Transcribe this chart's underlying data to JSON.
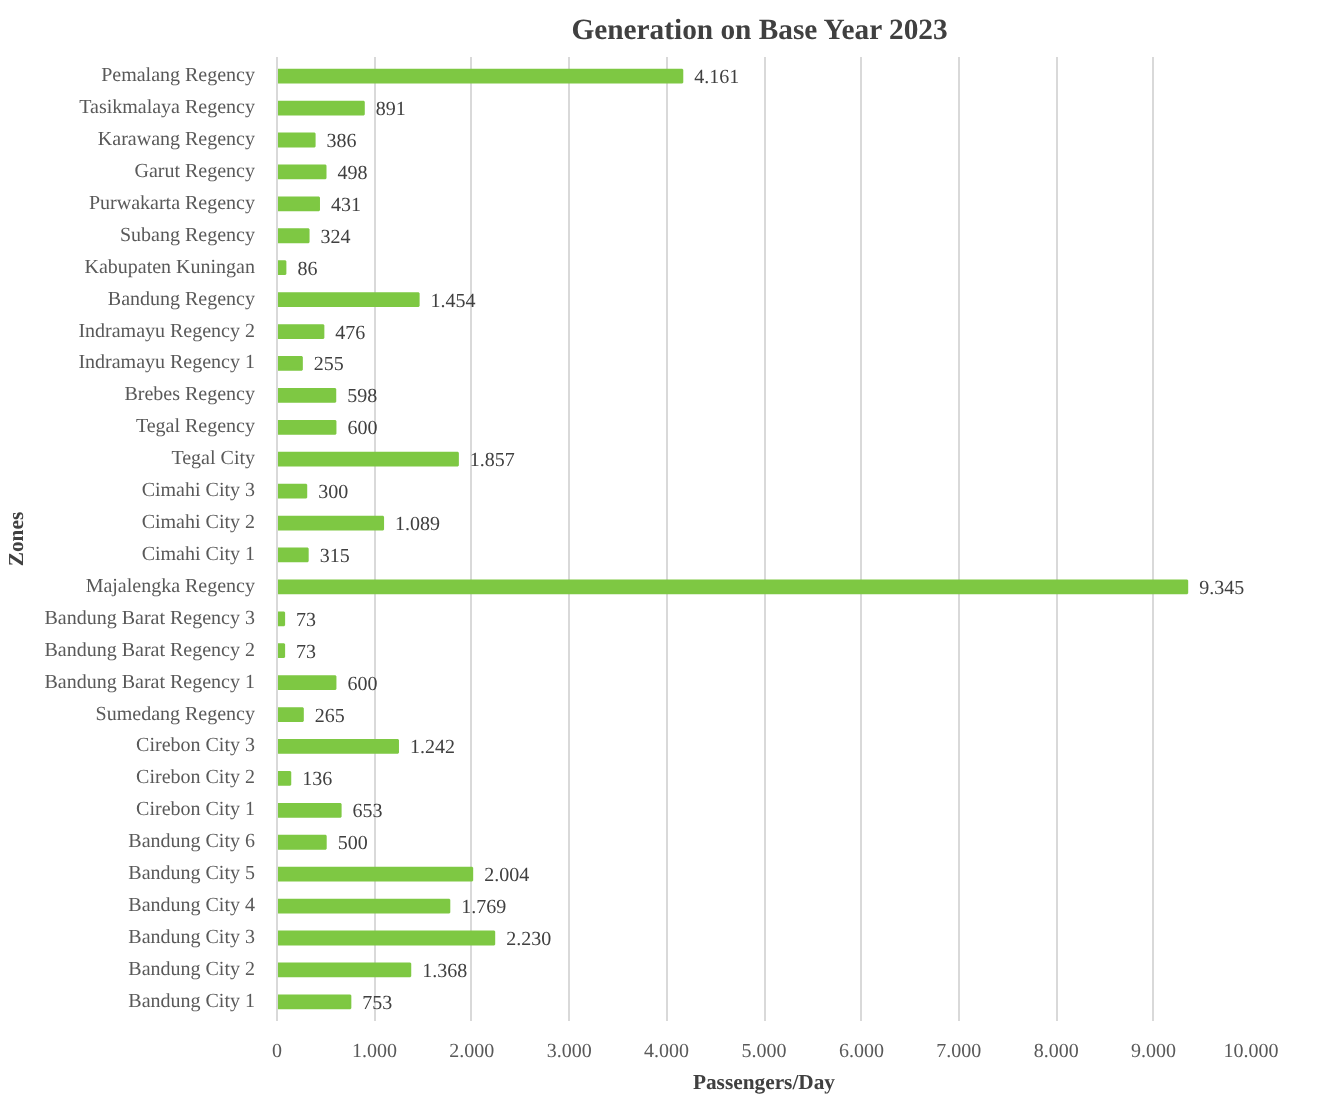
{
  "chart_data": {
    "type": "bar",
    "orientation": "horizontal",
    "title": "Generation  on Base Year 2023",
    "xlabel": "Passengers/Day",
    "ylabel": "Zones",
    "categories": [
      "Pemalang Regency",
      "Tasikmalaya Regency",
      "Karawang Regency",
      "Garut Regency",
      "Purwakarta Regency",
      "Subang Regency",
      "Kabupaten Kuningan",
      "Bandung Regency",
      "Indramayu Regency 2",
      "Indramayu Regency 1",
      "Brebes Regency",
      "Tegal Regency",
      "Tegal City",
      "Cimahi City 3",
      "Cimahi City 2",
      "Cimahi City 1",
      "Majalengka Regency",
      "Bandung Barat Regency 3",
      "Bandung Barat Regency 2",
      "Bandung Barat Regency 1",
      "Sumedang Regency",
      "Cirebon City 3",
      "Cirebon City 2",
      "Cirebon City 1",
      "Bandung City 6",
      "Bandung City 5",
      "Bandung City 4",
      "Bandung City 3",
      "Bandung City 2",
      "Bandung City 1"
    ],
    "values": [
      4161,
      891,
      386,
      498,
      431,
      324,
      86,
      1454,
      476,
      255,
      598,
      600,
      1857,
      300,
      1089,
      315,
      9345,
      73,
      73,
      600,
      265,
      1242,
      136,
      653,
      500,
      2004,
      1769,
      2230,
      1368,
      753
    ],
    "value_labels": [
      "4.161",
      "891",
      "386",
      "498",
      "431",
      "324",
      "86",
      "1.454",
      "476",
      "255",
      "598",
      "600",
      "1.857",
      "300",
      "1.089",
      "315",
      "9.345",
      "73",
      "73",
      "600",
      "265",
      "1.242",
      "136",
      "653",
      "500",
      "2.004",
      "1.769",
      "2.230",
      "1.368",
      "753"
    ],
    "color": "#7ec843",
    "xlim": [
      0,
      10000
    ],
    "xticks": [
      0,
      {
        "value": 1000,
        "label": "1.000"
      },
      {
        "value": 2000,
        "label": "2.000"
      },
      {
        "value": 3000,
        "label": "3.000"
      },
      {
        "value": 4000,
        "label": "4.000"
      },
      {
        "value": 5000,
        "label": "5.000"
      },
      {
        "value": 6000,
        "label": "6.000"
      },
      {
        "value": 7000,
        "label": "7.000"
      },
      {
        "value": 8000,
        "label": "8.000"
      },
      {
        "value": 9000,
        "label": "9.000"
      },
      {
        "value": 10000,
        "label": "10.000"
      }
    ],
    "grid": "x"
  }
}
